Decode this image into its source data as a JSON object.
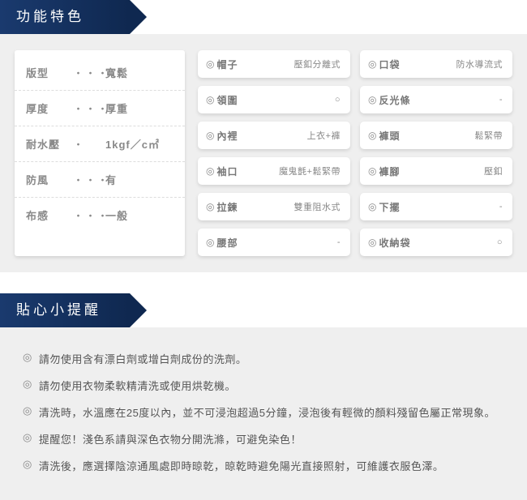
{
  "sections": {
    "features_title": "功能特色",
    "reminders_title": "貼心小提醒"
  },
  "specs": [
    {
      "label": "版型",
      "dots": "・・・",
      "value": "寬鬆"
    },
    {
      "label": "厚度",
      "dots": "・・・",
      "value": "厚重"
    },
    {
      "label": "耐水壓",
      "dots": "・",
      "value": "1kgf／c㎡"
    },
    {
      "label": "防風",
      "dots": "・・・",
      "value": "有"
    },
    {
      "label": "布感",
      "dots": "・・・",
      "value": "一般"
    }
  ],
  "pills": [
    {
      "label": "帽子",
      "value": "壓釦分離式"
    },
    {
      "label": "口袋",
      "value": "防水導流式"
    },
    {
      "label": "領圍",
      "value": "○"
    },
    {
      "label": "反光條",
      "value": "-"
    },
    {
      "label": "內裡",
      "value": "上衣+褲"
    },
    {
      "label": "褲頭",
      "value": "鬆緊帶"
    },
    {
      "label": "袖口",
      "value": "魔鬼氈+鬆緊帶"
    },
    {
      "label": "褲腳",
      "value": "壓釦"
    },
    {
      "label": "拉鍊",
      "value": "雙重阻水式"
    },
    {
      "label": "下擺",
      "value": "-"
    },
    {
      "label": "腰部",
      "value": "-"
    },
    {
      "label": "收納袋",
      "value": "○"
    }
  ],
  "reminders": [
    "請勿使用含有漂白劑或增白劑成份的洗劑。",
    "請勿使用衣物柔軟精清洗或使用烘乾機。",
    "清洗時，水溫應在25度以內，並不可浸泡超過5分鐘，浸泡後有輕微的顏料殘留色屬正常現象。",
    "提醒您！淺色系請與深色衣物分開洗滌，可避免染色！",
    "清洗後，應選擇陰涼通風處即時晾乾，晾乾時避免陽光直接照射，可維護衣服色澤。"
  ],
  "glyphs": {
    "bullet": "◎"
  },
  "colors": {
    "header_gradient_from": "#1a3a6e",
    "header_gradient_to": "#0f2850",
    "panel_bg": "#efefef",
    "card_bg": "#ffffff",
    "text": "#555555"
  }
}
